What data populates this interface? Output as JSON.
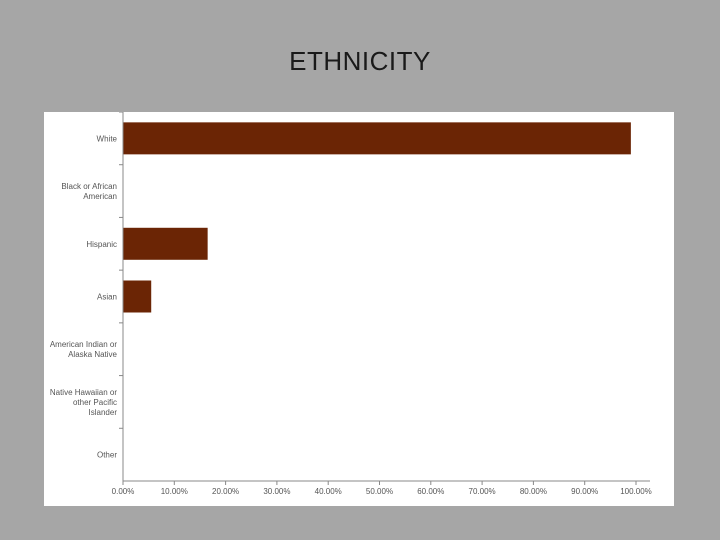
{
  "slide": {
    "title": "ETHNICITY"
  },
  "colors": {
    "bar": "#6b2505",
    "axis": "#888888",
    "background": "#a6a6a6",
    "panel": "#ffffff"
  },
  "chart_data": {
    "type": "bar",
    "orientation": "horizontal",
    "title": "",
    "xlabel": "",
    "ylabel": "",
    "categories": [
      [
        "White"
      ],
      [
        "Black or African",
        "American"
      ],
      [
        "Hispanic"
      ],
      [
        "Asian"
      ],
      [
        "American Indian or",
        "Alaska Native"
      ],
      [
        "Native Hawaiian or",
        "other Pacific",
        "Islander"
      ],
      [
        "Other"
      ]
    ],
    "values": [
      99.0,
      0,
      16.5,
      5.5,
      0,
      0,
      0
    ],
    "xlim": [
      0,
      100
    ],
    "xticks": [
      "0.00%",
      "10.00%",
      "20.00%",
      "30.00%",
      "40.00%",
      "50.00%",
      "60.00%",
      "70.00%",
      "80.00%",
      "90.00%",
      "100.00%"
    ],
    "grid": false,
    "legend": "none"
  }
}
